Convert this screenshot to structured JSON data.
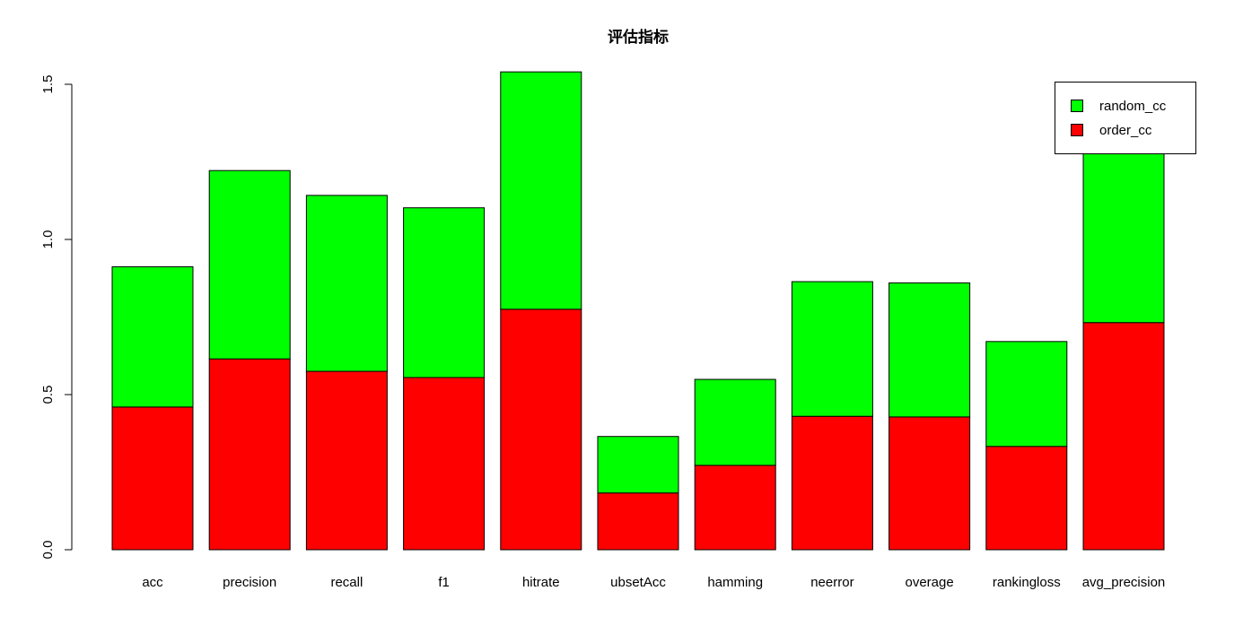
{
  "chart_data": {
    "type": "bar",
    "stacked": true,
    "title": "评估指标",
    "xlabel": "",
    "ylabel": "",
    "ylim": [
      0,
      1.5
    ],
    "yticks": [
      "0.0",
      "0.5",
      "1.0",
      "1.5"
    ],
    "grid": false,
    "legend_position": "top-right",
    "categories": [
      "acc",
      "precision",
      "recall",
      "f1",
      "hitrate",
      "ubsetAcc",
      "hamming",
      "neerror",
      "overage",
      "rankingloss",
      "avg_precision"
    ],
    "series": [
      {
        "name": "order_cc",
        "color": "#ff0000",
        "values": [
          0.46,
          0.615,
          0.575,
          0.555,
          0.775,
          0.183,
          0.272,
          0.43,
          0.428,
          0.333,
          0.732
        ]
      },
      {
        "name": "random_cc",
        "color": "#00ff00",
        "values": [
          0.452,
          0.607,
          0.567,
          0.547,
          0.765,
          0.182,
          0.277,
          0.434,
          0.432,
          0.338,
          0.728
        ]
      }
    ]
  }
}
